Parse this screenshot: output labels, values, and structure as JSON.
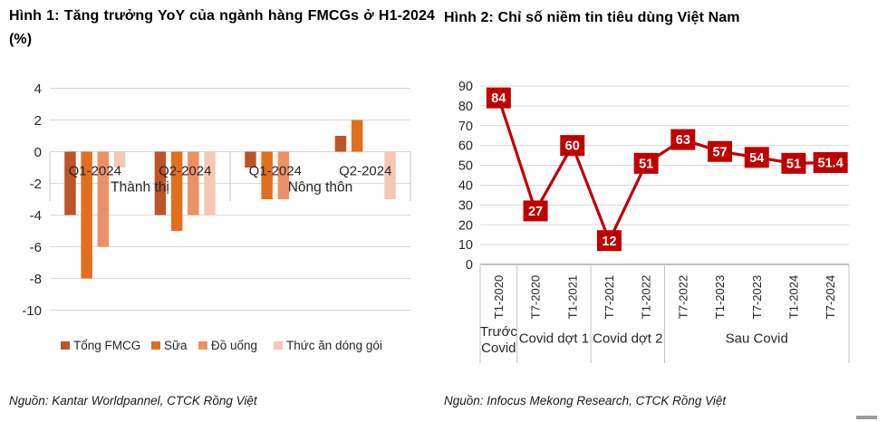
{
  "chart_data": [
    {
      "type": "bar",
      "title": "Hình 1: Tăng trưởng YoY của ngành hàng FMCGs ở H1-2024 (%)",
      "source": "Nguồn: Kantar Worldpannel, CTCK Rồng Việt",
      "categories": [
        "Q1-2024",
        "Q2-2024",
        "Q1-2024",
        "Q2-2024"
      ],
      "category_groups": [
        {
          "label": "Thành thị",
          "span": 2
        },
        {
          "label": "Nông thôn",
          "span": 2
        }
      ],
      "series": [
        {
          "name": "Tổng FMCG",
          "color": "#bd5427",
          "values": [
            -4,
            -4,
            -1,
            1
          ]
        },
        {
          "name": "Sữa",
          "color": "#e26f1e",
          "values": [
            -8,
            -5,
            -3,
            2
          ]
        },
        {
          "name": "Đồ uống",
          "color": "#ec9166",
          "values": [
            -6,
            -4,
            -3,
            0
          ]
        },
        {
          "name": "Thức ăn dóng gói",
          "color": "#f5c8b5",
          "values": [
            -1,
            -4,
            0,
            -3
          ]
        }
      ],
      "ylim": [
        -10,
        4
      ],
      "yticks": [
        4,
        2,
        0,
        -2,
        -4,
        -6,
        -8,
        -10
      ],
      "grid": true,
      "legend_position": "bottom"
    },
    {
      "type": "line",
      "title": "Hình 2: Chỉ số niềm tin tiêu dùng Việt Nam",
      "source": "Nguồn: Infocus Mekong Research, CTCK Rồng Việt",
      "x": [
        "T1-2020",
        "T7-2020",
        "T1-2021",
        "T7-2021",
        "T1-2022",
        "T7-2022",
        "T1-2023",
        "T7-2023",
        "T1-2024",
        "T7-2024"
      ],
      "values": [
        84,
        27,
        60,
        12,
        51,
        63,
        57,
        54,
        51,
        51.4
      ],
      "point_labels": [
        "84",
        "27",
        "60",
        "12",
        "51",
        "63",
        "57",
        "54",
        "51",
        "51.4"
      ],
      "x_groups": [
        {
          "label": "Trước Covid",
          "span": 1
        },
        {
          "label": "Covid dợt 1",
          "span": 2
        },
        {
          "label": "Covid dợt 2",
          "span": 2
        },
        {
          "label": "Sau Covid",
          "span": 5
        }
      ],
      "ylim": [
        0,
        90
      ],
      "yticks": [
        90,
        80,
        70,
        60,
        50,
        40,
        30,
        20,
        10,
        0
      ],
      "line_color": "#c00000",
      "label_box_color": "#c00000",
      "label_text_color": "#ffffff",
      "grid": true,
      "legend_position": "none"
    }
  ],
  "colors": {
    "grid": "#d9d9d9",
    "axis": "#a0a0a0",
    "separator": "#c4c4c4",
    "text": "#262626"
  }
}
